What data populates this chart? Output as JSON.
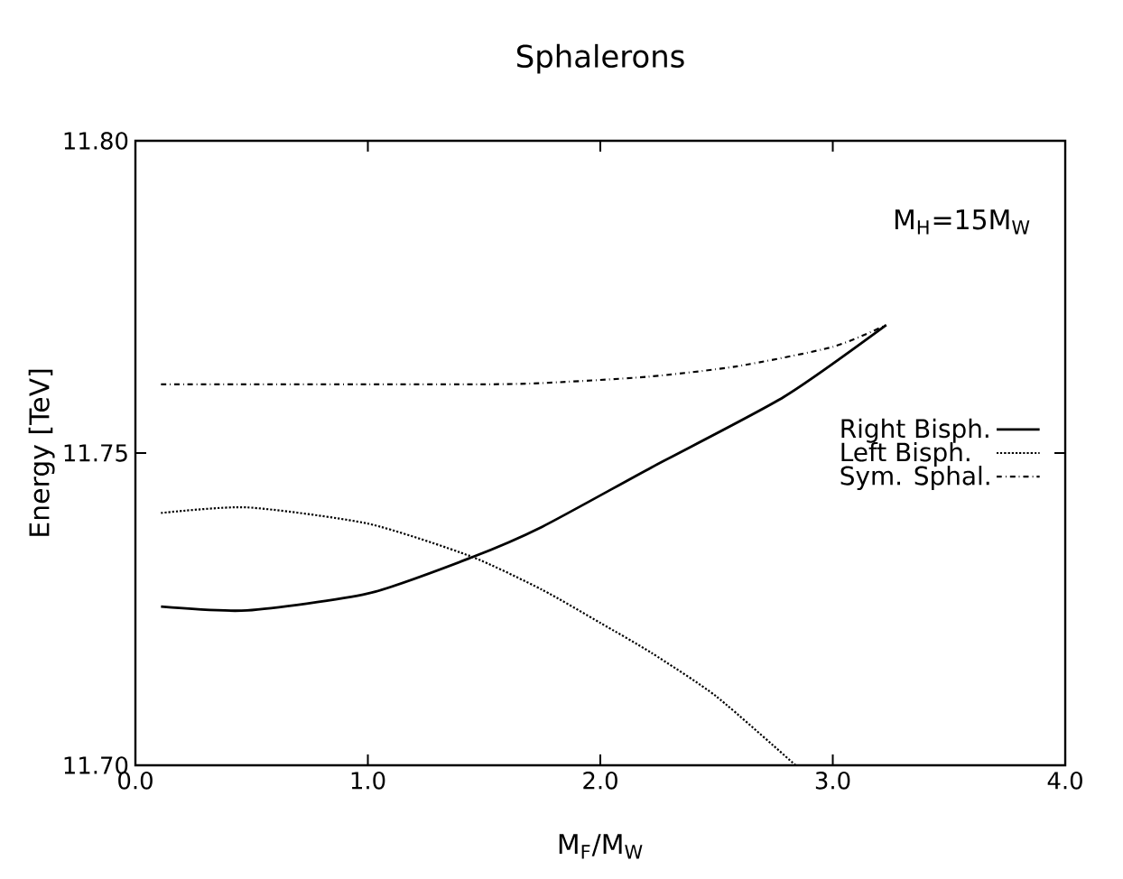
{
  "chart_data": {
    "type": "line",
    "title": "Sphalerons",
    "xlabel": "M$_{F}$/M$_{W}$",
    "ylabel": "Energy [TeV]",
    "annotations": [
      "M$_{H}$=15M$_{W}$"
    ],
    "xlim": [
      0,
      4
    ],
    "ylim": [
      11.7,
      11.8
    ],
    "xticks": [
      {
        "value": 0,
        "label": "0.0"
      },
      {
        "value": 1,
        "label": "1.0"
      },
      {
        "value": 2,
        "label": "2.0"
      },
      {
        "value": 3,
        "label": "3.0"
      },
      {
        "value": 4,
        "label": "4.0"
      }
    ],
    "yticks": [
      {
        "value": 11.7,
        "label": "11.70"
      },
      {
        "value": 11.75,
        "label": "11.75"
      },
      {
        "value": 11.8,
        "label": "11.80"
      }
    ],
    "legend": "right",
    "grid": false,
    "marker": "none",
    "series": [
      {
        "name": "Right Bisph.",
        "color": "#000000",
        "line_style": "solid",
        "x": [
          0.11,
          0.48,
          1.0,
          1.44,
          1.75,
          2.22,
          2.79,
          3.23
        ],
        "values": [
          11.7254,
          11.7248,
          11.7275,
          11.7332,
          11.7382,
          11.7477,
          11.759,
          11.7705
        ]
      },
      {
        "name": "Left Bisph.",
        "color": "#000000",
        "line_style": "dotted",
        "x": [
          0.11,
          0.48,
          1.0,
          1.44,
          1.75,
          2.0,
          2.22,
          2.5,
          2.84
        ],
        "values": [
          11.7404,
          11.7413,
          11.7387,
          11.7335,
          11.7281,
          11.7228,
          11.718,
          11.711,
          11.7
        ]
      },
      {
        "name": "Sym. Sphal.",
        "color": "#000000",
        "line_style": "dashdot",
        "x": [
          0.11,
          0.5,
          1.0,
          1.5,
          1.75,
          2.2,
          2.59,
          3.0,
          3.23
        ],
        "values": [
          11.761,
          11.761,
          11.761,
          11.761,
          11.7612,
          11.7622,
          11.7639,
          11.767,
          11.7705
        ]
      }
    ]
  }
}
